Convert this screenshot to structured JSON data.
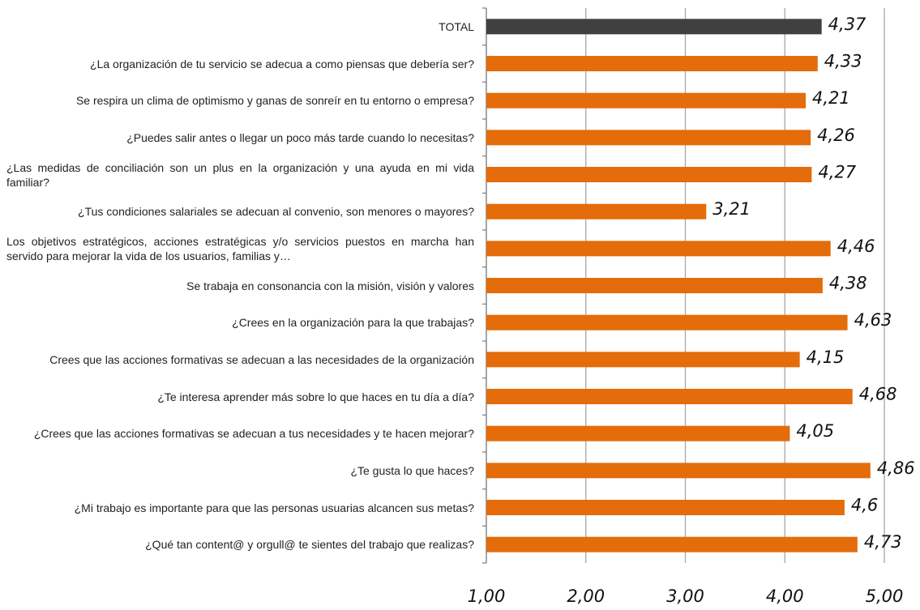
{
  "chart_data": {
    "type": "bar",
    "orientation": "horizontal",
    "categories": [
      "TOTAL",
      "¿La organización de tu servicio se adecua a como piensas que debería ser?",
      "Se respira un clima de optimismo y ganas de sonreír en tu entorno o empresa?",
      "¿Puedes salir antes o llegar un poco más tarde cuando lo necesitas?",
      "¿Las medidas de conciliación son un plus en la organización y una ayuda en mi vida familiar?",
      "¿Tus condiciones salariales se adecuan al convenio, son menores o mayores?",
      "Los objetivos estratégicos, acciones estratégicas y/o servicios puestos en marcha han servido para mejorar la vida de los usuarios, familias y…",
      "Se trabaja en consonancia con la misión, visión y valores",
      "¿Crees en la organización para la que trabajas?",
      "Crees que las acciones formativas se adecuan a las necesidades de la organización",
      "¿Te interesa aprender más sobre lo que haces en tu día a día?",
      "¿Crees que las acciones formativas se adecuan a tus necesidades y te hacen mejorar?",
      "¿Te gusta lo que haces?",
      "¿Mi trabajo es importante para que las personas usuarias alcancen sus metas?",
      "¿Qué tan content@ y orgull@ te sientes del trabajo que realizas?"
    ],
    "values": [
      4.37,
      4.33,
      4.21,
      4.26,
      4.27,
      3.21,
      4.46,
      4.38,
      4.63,
      4.15,
      4.68,
      4.05,
      4.86,
      4.6,
      4.73
    ],
    "value_labels": [
      "4,37",
      "4,33",
      "4,21",
      "4,26",
      "4,27",
      "3,21",
      "4,46",
      "4,38",
      "4,63",
      "4,15",
      "4,68",
      "4,05",
      "4,86",
      "4,6",
      "4,73"
    ],
    "colors": [
      "#404040",
      "#e46c0a",
      "#e46c0a",
      "#e46c0a",
      "#e46c0a",
      "#e46c0a",
      "#e46c0a",
      "#e46c0a",
      "#e46c0a",
      "#e46c0a",
      "#e46c0a",
      "#e46c0a",
      "#e46c0a",
      "#e46c0a",
      "#e46c0a"
    ],
    "xlim": [
      1,
      5
    ],
    "xticks": [
      {
        "value": 1,
        "label": "1,00"
      },
      {
        "value": 2,
        "label": "2,00"
      },
      {
        "value": 3,
        "label": "3,00"
      },
      {
        "value": 4,
        "label": "4,00"
      },
      {
        "value": 5,
        "label": "5,00"
      }
    ],
    "grid": true
  }
}
